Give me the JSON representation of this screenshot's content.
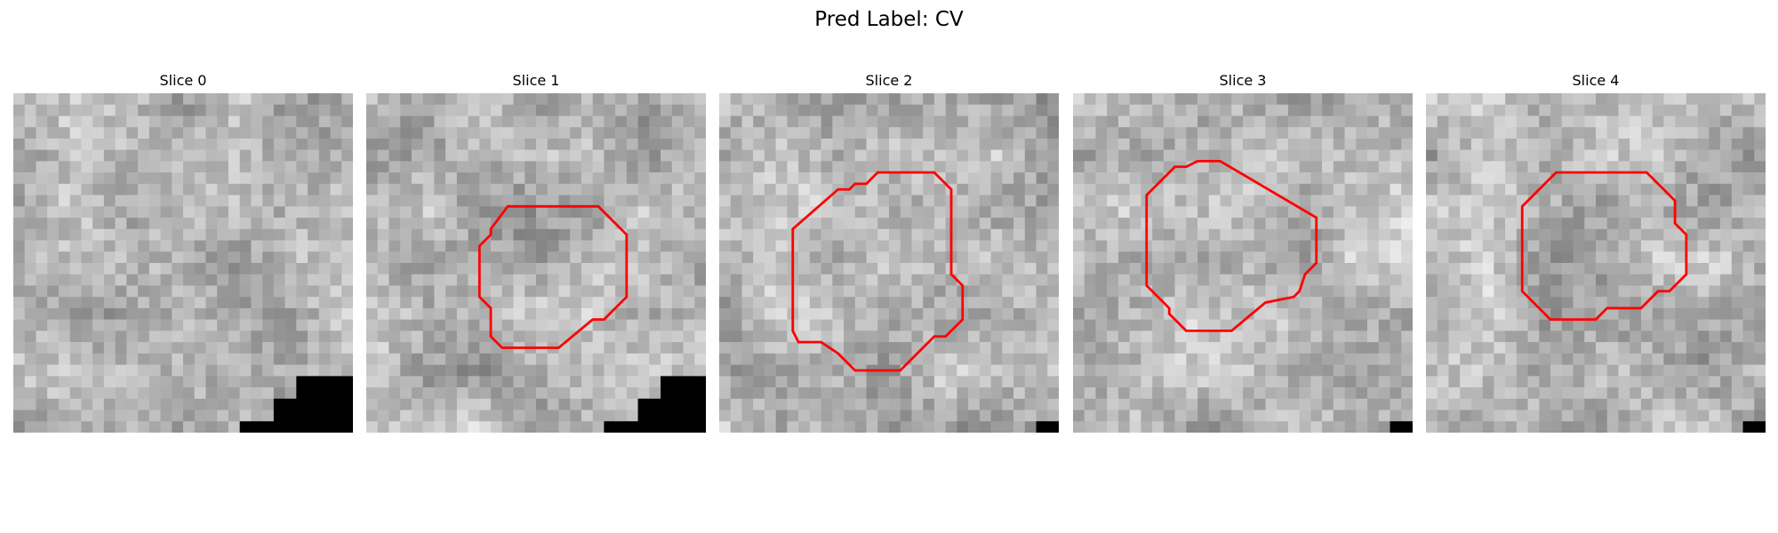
{
  "figure": {
    "title": "Pred Label: CV"
  },
  "slices": [
    {
      "title": "Slice 0",
      "contour": [],
      "black_region": [
        [
          20,
          30
        ],
        [
          20,
          29
        ],
        [
          23,
          29
        ],
        [
          23,
          27
        ],
        [
          25,
          27
        ],
        [
          25,
          25
        ],
        [
          30,
          25
        ],
        [
          30,
          30
        ]
      ]
    },
    {
      "title": "Slice 1",
      "contour": [
        [
          12.5,
          10.0
        ],
        [
          20.5,
          10.0
        ],
        [
          23.0,
          12.5
        ],
        [
          23.0,
          18.0
        ],
        [
          21.5,
          19.5
        ],
        [
          21.0,
          20.0
        ],
        [
          20.0,
          20.0
        ],
        [
          17.0,
          22.5
        ],
        [
          12.0,
          22.5
        ],
        [
          11.0,
          21.5
        ],
        [
          11.0,
          19.0
        ],
        [
          10.0,
          18.0
        ],
        [
          10.0,
          13.5
        ],
        [
          11.0,
          12.5
        ],
        [
          11.0,
          12.0
        ]
      ],
      "black_region": [
        [
          21,
          30
        ],
        [
          21,
          29
        ],
        [
          24,
          29
        ],
        [
          24,
          27
        ],
        [
          26,
          27
        ],
        [
          26,
          25
        ],
        [
          30,
          25
        ],
        [
          30,
          30
        ]
      ]
    },
    {
      "title": "Slice 2",
      "contour": [
        [
          14.0,
          7.0
        ],
        [
          19.0,
          7.0
        ],
        [
          20.5,
          8.5
        ],
        [
          20.5,
          16.0
        ],
        [
          21.5,
          17.0
        ],
        [
          21.5,
          20.0
        ],
        [
          20.0,
          21.5
        ],
        [
          19.0,
          21.5
        ],
        [
          16.0,
          24.5
        ],
        [
          12.0,
          24.5
        ],
        [
          10.5,
          23.0
        ],
        [
          9.0,
          22.0
        ],
        [
          7.0,
          22.0
        ],
        [
          6.5,
          21.0
        ],
        [
          6.5,
          12.0
        ],
        [
          10.5,
          8.5
        ],
        [
          11.5,
          8.5
        ],
        [
          12.0,
          8.0
        ],
        [
          13.0,
          8.0
        ]
      ],
      "black_region": [
        [
          28,
          30
        ],
        [
          28,
          29
        ],
        [
          30,
          29
        ],
        [
          30,
          30
        ]
      ]
    },
    {
      "title": "Slice 3",
      "contour": [
        [
          11.0,
          6.0
        ],
        [
          13.0,
          6.0
        ],
        [
          21.5,
          11.0
        ],
        [
          21.5,
          15.0
        ],
        [
          20.5,
          16.0
        ],
        [
          20.0,
          17.5
        ],
        [
          19.5,
          18.0
        ],
        [
          17.0,
          18.5
        ],
        [
          14.0,
          21.0
        ],
        [
          10.0,
          21.0
        ],
        [
          9.5,
          20.5
        ],
        [
          8.5,
          19.5
        ],
        [
          8.5,
          19.0
        ],
        [
          6.5,
          17.0
        ],
        [
          6.5,
          9.0
        ],
        [
          9.0,
          6.5
        ],
        [
          10.0,
          6.5
        ]
      ],
      "black_region": [
        [
          28,
          30
        ],
        [
          28,
          29
        ],
        [
          30,
          29
        ],
        [
          30,
          30
        ]
      ]
    },
    {
      "title": "Slice 4",
      "contour": [
        [
          12.0,
          7.0
        ],
        [
          19.5,
          7.0
        ],
        [
          22.0,
          9.5
        ],
        [
          22.0,
          11.5
        ],
        [
          23.0,
          12.5
        ],
        [
          23.0,
          16.0
        ],
        [
          21.5,
          17.5
        ],
        [
          20.5,
          17.5
        ],
        [
          19.0,
          19.0
        ],
        [
          16.0,
          19.0
        ],
        [
          15.0,
          20.0
        ],
        [
          11.0,
          20.0
        ],
        [
          8.5,
          17.5
        ],
        [
          8.5,
          10.0
        ],
        [
          11.5,
          7.0
        ]
      ],
      "black_region": [
        [
          28,
          30
        ],
        [
          28,
          29
        ],
        [
          30,
          29
        ],
        [
          30,
          30
        ]
      ]
    }
  ]
}
